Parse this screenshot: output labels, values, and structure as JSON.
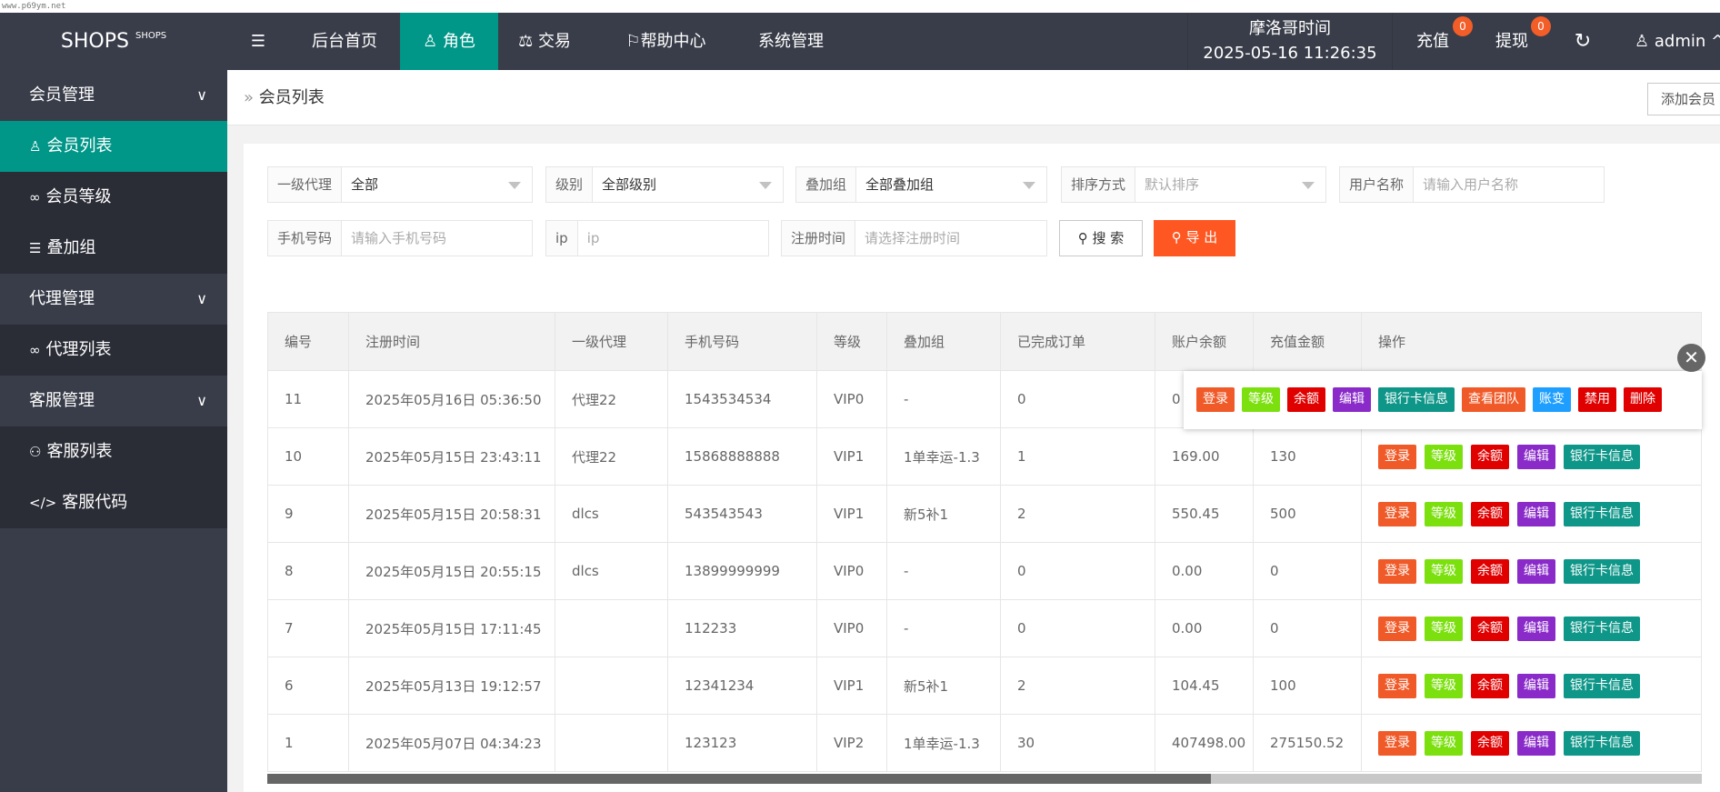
{
  "watermark": "www.p69ym.net",
  "header": {
    "logo": "SHOPS",
    "logo_small": "SHOPS",
    "nav": [
      "后台首页",
      "角色",
      "交易",
      "帮助中心",
      "系统管理"
    ],
    "time_label": "摩洛哥时间",
    "time": "2025-05-16 11:26:35",
    "recharge": "充值",
    "recharge_count": "0",
    "withdraw": "提现",
    "withdraw_count": "0",
    "user": "admin"
  },
  "sidebar": [
    {
      "label": "会员管理",
      "type": "group"
    },
    {
      "label": "会员列表",
      "type": "sub",
      "active": true,
      "icon": "user-icon"
    },
    {
      "label": "会员等级",
      "type": "sub",
      "icon": "link-icon"
    },
    {
      "label": "叠加组",
      "type": "sub",
      "icon": "list-icon"
    },
    {
      "label": "代理管理",
      "type": "group"
    },
    {
      "label": "代理列表",
      "type": "sub",
      "icon": "link-icon"
    },
    {
      "label": "客服管理",
      "type": "group"
    },
    {
      "label": "客服列表",
      "type": "sub",
      "icon": "users-icon"
    },
    {
      "label": "客服代码",
      "type": "sub",
      "icon": "code-icon"
    }
  ],
  "breadcrumb": "会员列表",
  "add_member": "添加会员",
  "filters": {
    "agent_label": "一级代理",
    "agent_value": "全部",
    "level_label": "级别",
    "level_value": "全部级别",
    "group_label": "叠加组",
    "group_value": "全部叠加组",
    "sort_label": "排序方式",
    "sort_placeholder": "默认排序",
    "username_label": "用户名称",
    "username_placeholder": "请输入用户名称",
    "phone_label": "手机号码",
    "phone_placeholder": "请输入手机号码",
    "ip_label": "ip",
    "ip_placeholder": "ip",
    "regtime_label": "注册时间",
    "regtime_placeholder": "请选择注册时间",
    "search": "搜 索",
    "export": "导 出"
  },
  "table": {
    "headers": [
      "编号",
      "注册时间",
      "一级代理",
      "手机号码",
      "等级",
      "叠加组",
      "已完成订单",
      "账户余额",
      "充值金额",
      "操作"
    ],
    "rows": [
      [
        "11",
        "2025年05月16日 05:36:50",
        "代理22",
        "1543534534",
        "VIP0",
        "-",
        "0",
        "0",
        ""
      ],
      [
        "10",
        "2025年05月15日 23:43:11",
        "代理22",
        "15868888888",
        "VIP1",
        "1单幸运-1.3",
        "1",
        "169.00",
        "130"
      ],
      [
        "9",
        "2025年05月15日 20:58:31",
        "dlcs",
        "543543543",
        "VIP1",
        "新5补1",
        "2",
        "550.45",
        "500"
      ],
      [
        "8",
        "2025年05月15日 20:55:15",
        "dlcs",
        "13899999999",
        "VIP0",
        "-",
        "0",
        "0.00",
        "0"
      ],
      [
        "7",
        "2025年05月15日 17:11:45",
        "",
        "112233",
        "VIP0",
        "-",
        "0",
        "0.00",
        "0"
      ],
      [
        "6",
        "2025年05月13日 19:12:57",
        "",
        "12341234",
        "VIP1",
        "新5补1",
        "2",
        "104.45",
        "100"
      ],
      [
        "1",
        "2025年05月07日 04:34:23",
        "",
        "123123",
        "VIP2",
        "1单幸运-1.3",
        "30",
        "407498.00",
        "275150.52"
      ]
    ],
    "row_actions": [
      {
        "label": "登录",
        "color": "#f05a28"
      },
      {
        "label": "等级",
        "color": "#7ce00f"
      },
      {
        "label": "余额",
        "color": "#e00000"
      },
      {
        "label": "编辑",
        "color": "#8a2bc9"
      },
      {
        "label": "银行卡信息",
        "color": "#0e9688"
      }
    ]
  },
  "popup_actions": [
    {
      "label": "登录",
      "color": "#f05a28"
    },
    {
      "label": "等级",
      "color": "#7ce00f"
    },
    {
      "label": "余额",
      "color": "#e00000"
    },
    {
      "label": "编辑",
      "color": "#8a2bc9"
    },
    {
      "label": "银行卡信息",
      "color": "#0e9688"
    },
    {
      "label": "查看团队",
      "color": "#f05a28"
    },
    {
      "label": "账变",
      "color": "#1e9fff"
    },
    {
      "label": "禁用",
      "color": "#e00000"
    },
    {
      "label": "删除",
      "color": "#e00000"
    }
  ],
  "colors": {
    "accent": "#009688",
    "header": "#393d49",
    "export": "#ff5722"
  }
}
